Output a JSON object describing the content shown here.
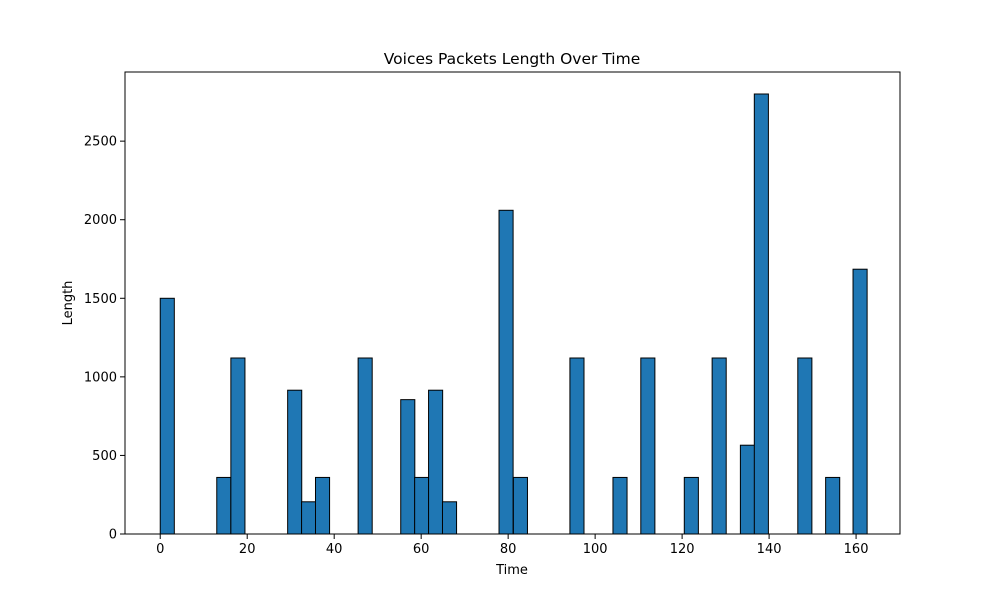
{
  "chart_data": {
    "type": "bar",
    "title": "Voices Packets Length Over Time",
    "xlabel": "Time",
    "ylabel": "Length",
    "xlim": [
      -8.1,
      170.1
    ],
    "ylim": [
      0,
      2940
    ],
    "xticks": [
      0,
      20,
      40,
      60,
      80,
      100,
      120,
      140,
      160
    ],
    "yticks": [
      0,
      500,
      1000,
      1500,
      2000,
      2500
    ],
    "bar_width": 3.24,
    "bar_color": "#1f77b4",
    "edge_color": "#000000",
    "grid": false,
    "legend": "none",
    "x": [
      0,
      13,
      16.24,
      29.3,
      32.5,
      35.7,
      45.5,
      55.3,
      58.5,
      61.7,
      64.9,
      77.9,
      81.2,
      94.2,
      104.1,
      110.5,
      120.5,
      126.9,
      133.4,
      136.6,
      146.6,
      153,
      159.3
    ],
    "values": [
      1500,
      360,
      1120,
      915,
      205,
      360,
      1120,
      855,
      360,
      915,
      205,
      2060,
      360,
      1120,
      360,
      1120,
      360,
      1120,
      565,
      2800,
      1120,
      360,
      1685
    ]
  }
}
